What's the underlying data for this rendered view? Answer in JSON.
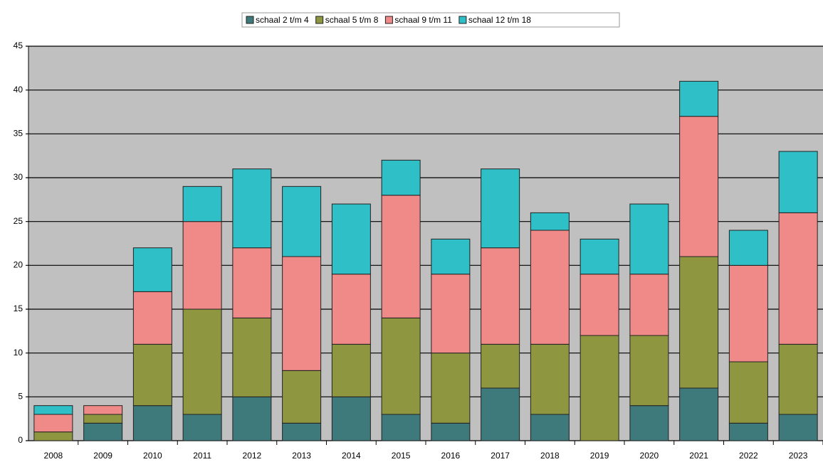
{
  "chart_data": {
    "type": "stacked_bar",
    "categories": [
      "2008",
      "2009",
      "2010",
      "2011",
      "2012",
      "2013",
      "2014",
      "2015",
      "2016",
      "2017",
      "2018",
      "2019",
      "2020",
      "2021",
      "2022",
      "2023"
    ],
    "series": [
      {
        "name": "schaal 2 t/m 4",
        "color": "#3e7a7c",
        "values": [
          0,
          2,
          4,
          3,
          5,
          2,
          5,
          3,
          2,
          6,
          3,
          0,
          4,
          6,
          2,
          3
        ]
      },
      {
        "name": "schaal 5 t/m 8",
        "color": "#8f9640",
        "values": [
          1,
          1,
          7,
          12,
          9,
          6,
          6,
          11,
          8,
          5,
          8,
          12,
          8,
          15,
          7,
          8
        ]
      },
      {
        "name": "schaal 9 t/m 11",
        "color": "#f08a88",
        "values": [
          2,
          1,
          6,
          10,
          8,
          13,
          8,
          14,
          9,
          11,
          13,
          7,
          7,
          16,
          11,
          15
        ]
      },
      {
        "name": "schaal 12 t/m 18",
        "color": "#2fbfc6",
        "values": [
          1,
          0,
          5,
          4,
          9,
          8,
          8,
          4,
          4,
          9,
          2,
          4,
          8,
          4,
          4,
          7
        ]
      }
    ],
    "ylim": [
      0,
      45
    ],
    "yticks": [
      0,
      5,
      10,
      15,
      20,
      25,
      30,
      35,
      40,
      45
    ],
    "grid": true,
    "legend": "top"
  }
}
